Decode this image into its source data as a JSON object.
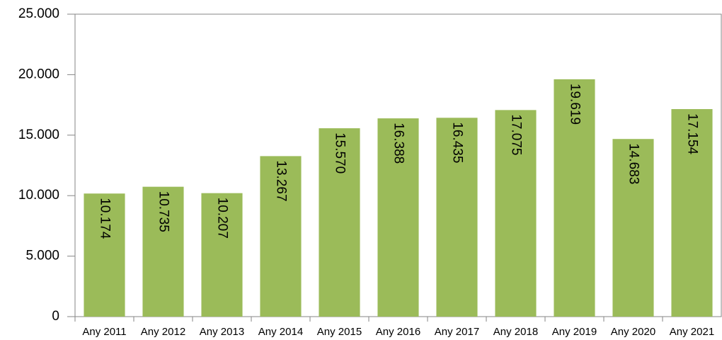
{
  "chart_data": {
    "type": "bar",
    "categories": [
      "Any 2011",
      "Any 2012",
      "Any 2013",
      "Any 2014",
      "Any 2015",
      "Any 2016",
      "Any 2017",
      "Any 2018",
      "Any 2019",
      "Any 2020",
      "Any 2021"
    ],
    "values": [
      10174,
      10735,
      10207,
      13267,
      15570,
      16388,
      16435,
      17075,
      19619,
      14683,
      17154
    ],
    "value_labels": [
      "10.174",
      "10.735",
      "10.207",
      "13.267",
      "15.570",
      "16.388",
      "16.435",
      "17.075",
      "19.619",
      "14.683",
      "17.154"
    ],
    "color": "#9bbb59",
    "ylim": [
      0,
      25000
    ],
    "yticks": [
      0,
      {
        "value": 5000,
        "label": "5.000"
      },
      {
        "value": 10000,
        "label": "10.000"
      },
      {
        "value": 15000,
        "label": "15.000"
      },
      {
        "value": 20000,
        "label": "20.000"
      },
      {
        "value": 25000,
        "label": "25.000"
      }
    ],
    "grid": false
  }
}
